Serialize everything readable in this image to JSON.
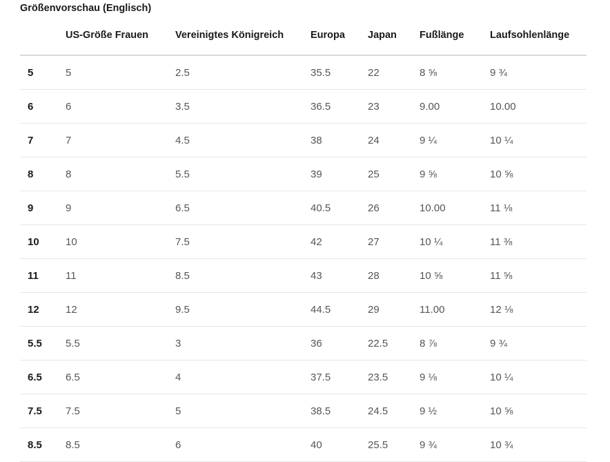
{
  "caption": "Größenvorschau (Englisch)",
  "table": {
    "headers": [
      "",
      "US-Größe Frauen",
      "Vereinigtes Königreich",
      "Europa",
      "Japan",
      "Fußlänge",
      "Laufsohlenlänge"
    ],
    "rows": [
      [
        "5",
        "5",
        "2.5",
        "35.5",
        "22",
        "8 ⅝",
        "9 ¾"
      ],
      [
        "6",
        "6",
        "3.5",
        "36.5",
        "23",
        "9.00",
        "10.00"
      ],
      [
        "7",
        "7",
        "4.5",
        "38",
        "24",
        "9 ¼",
        "10 ¼"
      ],
      [
        "8",
        "8",
        "5.5",
        "39",
        "25",
        "9 ⅝",
        "10 ⅝"
      ],
      [
        "9",
        "9",
        "6.5",
        "40.5",
        "26",
        "10.00",
        "11 ⅛"
      ],
      [
        "10",
        "10",
        "7.5",
        "42",
        "27",
        "10 ¼",
        "11 ⅜"
      ],
      [
        "11",
        "11",
        "8.5",
        "43",
        "28",
        "10 ⅝",
        "11 ⅝"
      ],
      [
        "12",
        "12",
        "9.5",
        "44.5",
        "29",
        "11.00",
        "12 ⅛"
      ],
      [
        "5.5",
        "5.5",
        "3",
        "36",
        "22.5",
        "8 ⅞",
        "9 ¾"
      ],
      [
        "6.5",
        "6.5",
        "4",
        "37.5",
        "23.5",
        "9 ⅛",
        "10 ¼"
      ],
      [
        "7.5",
        "7.5",
        "5",
        "38.5",
        "24.5",
        "9 ½",
        "10 ⅝"
      ],
      [
        "8.5",
        "8.5",
        "6",
        "40",
        "25.5",
        "9 ¾",
        "10 ¾"
      ]
    ]
  }
}
